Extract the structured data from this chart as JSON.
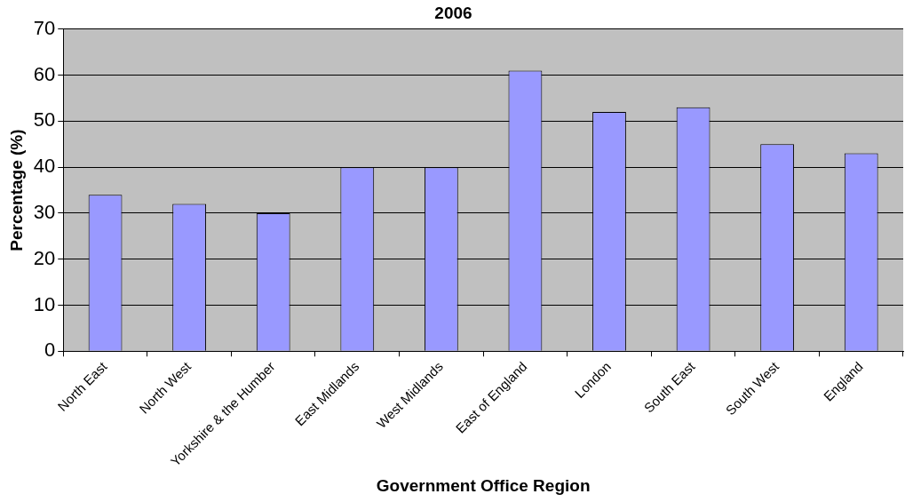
{
  "chart_data": {
    "type": "bar",
    "title": "2006",
    "xlabel": "Government Office Region",
    "ylabel": "Percentage (%)",
    "categories": [
      "North East",
      "North West",
      "Yorkshire & the Humber",
      "East Midlands",
      "West Midlands",
      "East of England",
      "London",
      "South East",
      "South West",
      "England"
    ],
    "values": [
      34,
      32,
      30,
      40,
      40,
      61,
      52,
      53,
      45,
      43
    ],
    "color": "#9999ff",
    "ylim": [
      0,
      70
    ],
    "yticks": [
      0,
      10,
      20,
      30,
      40,
      50,
      60,
      70
    ],
    "grid": "y",
    "legend": false
  }
}
